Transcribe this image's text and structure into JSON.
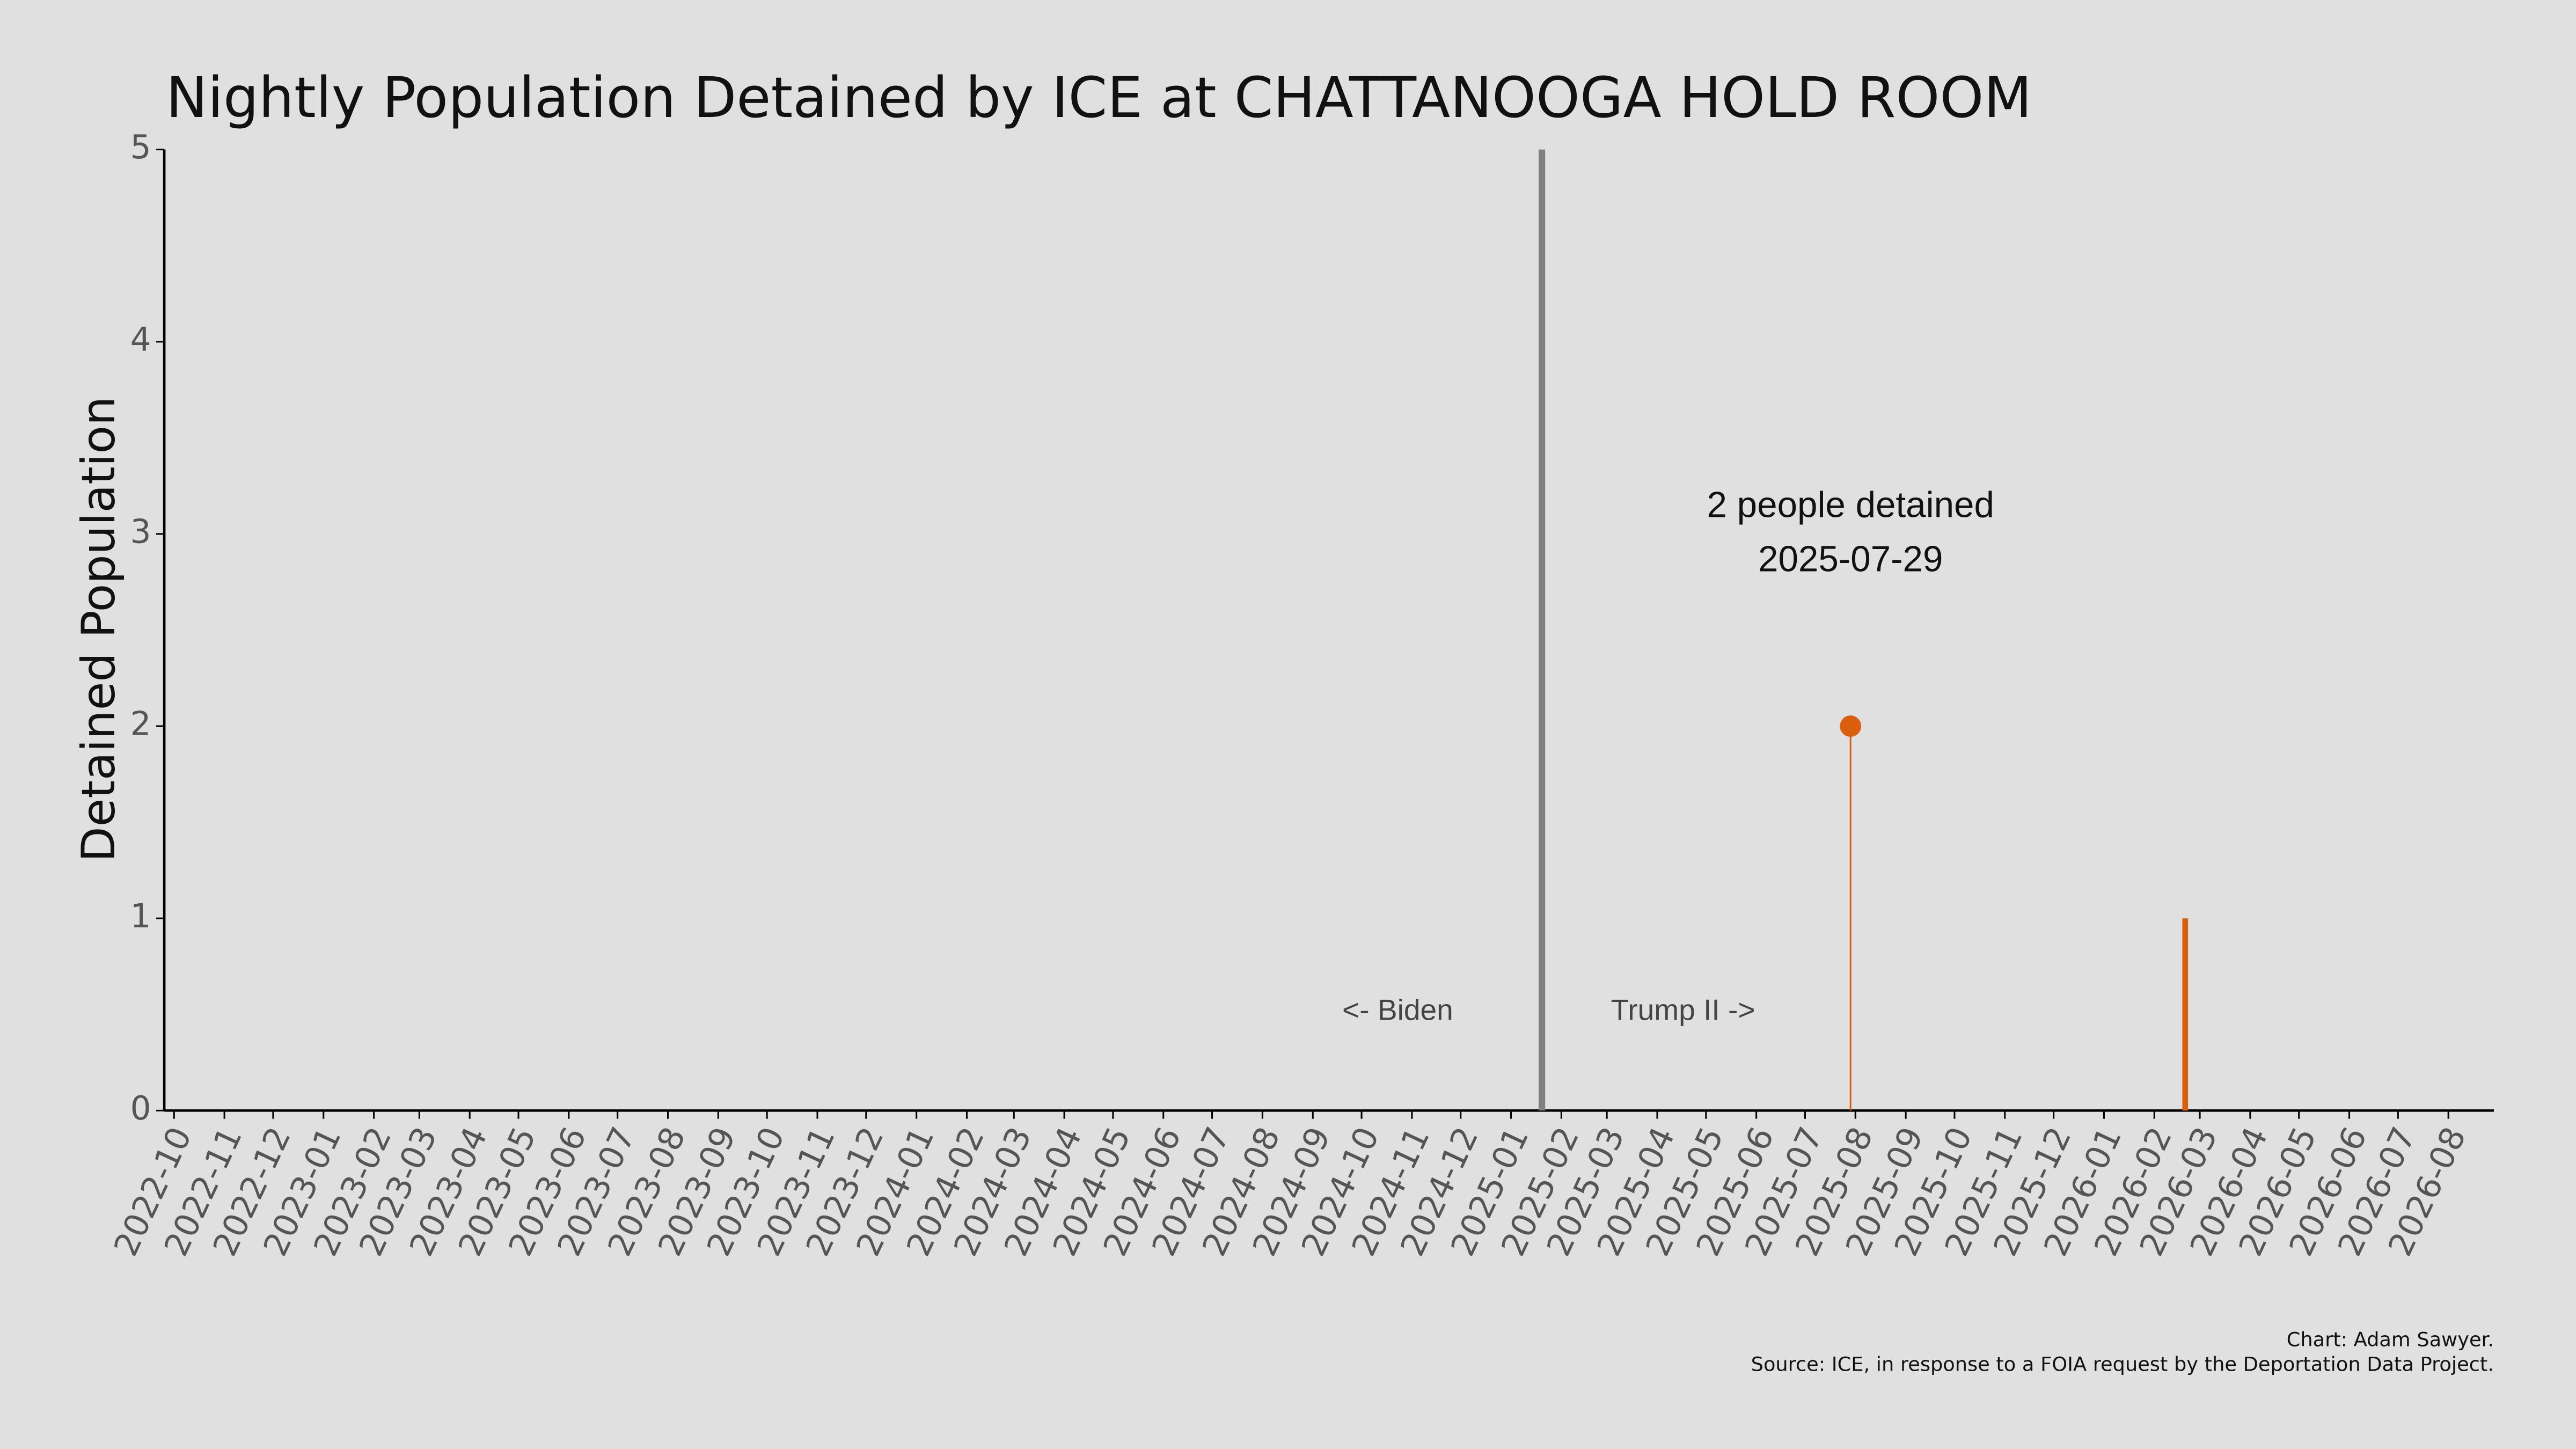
{
  "chart_data": {
    "type": "lollipop",
    "title": "Nightly Population Detained by ICE at CHATTANOOGA HOLD ROOM",
    "y_label": "Detained Population",
    "x": [
      "2025-07-29",
      "2026-02-20"
    ],
    "values": [
      2,
      1
    ],
    "color": "#d95f0e",
    "xlim": [
      "2022-09-25",
      "2026-08-29"
    ],
    "xticks": [
      {
        "value": "2022-10-01",
        "label": "2022-10"
      },
      {
        "value": "2022-11-01",
        "label": "2022-11"
      },
      {
        "value": "2022-12-01",
        "label": "2022-12"
      },
      {
        "value": "2023-01-01",
        "label": "2023-01"
      },
      {
        "value": "2023-02-01",
        "label": "2023-02"
      },
      {
        "value": "2023-03-01",
        "label": "2023-03"
      },
      {
        "value": "2023-04-01",
        "label": "2023-04"
      },
      {
        "value": "2023-05-01",
        "label": "2023-05"
      },
      {
        "value": "2023-06-01",
        "label": "2023-06"
      },
      {
        "value": "2023-07-01",
        "label": "2023-07"
      },
      {
        "value": "2023-08-01",
        "label": "2023-08"
      },
      {
        "value": "2023-09-01",
        "label": "2023-09"
      },
      {
        "value": "2023-10-01",
        "label": "2023-10"
      },
      {
        "value": "2023-11-01",
        "label": "2023-11"
      },
      {
        "value": "2023-12-01",
        "label": "2023-12"
      },
      {
        "value": "2024-01-01",
        "label": "2024-01"
      },
      {
        "value": "2024-02-01",
        "label": "2024-02"
      },
      {
        "value": "2024-03-01",
        "label": "2024-03"
      },
      {
        "value": "2024-04-01",
        "label": "2024-04"
      },
      {
        "value": "2024-05-01",
        "label": "2024-05"
      },
      {
        "value": "2024-06-01",
        "label": "2024-06"
      },
      {
        "value": "2024-07-01",
        "label": "2024-07"
      },
      {
        "value": "2024-08-01",
        "label": "2024-08"
      },
      {
        "value": "2024-09-01",
        "label": "2024-09"
      },
      {
        "value": "2024-10-01",
        "label": "2024-10"
      },
      {
        "value": "2024-11-01",
        "label": "2024-11"
      },
      {
        "value": "2024-12-01",
        "label": "2024-12"
      },
      {
        "value": "2025-01-01",
        "label": "2025-01"
      },
      {
        "value": "2025-02-01",
        "label": "2025-02"
      },
      {
        "value": "2025-03-01",
        "label": "2025-03"
      },
      {
        "value": "2025-04-01",
        "label": "2025-04"
      },
      {
        "value": "2025-05-01",
        "label": "2025-05"
      },
      {
        "value": "2025-06-01",
        "label": "2025-06"
      },
      {
        "value": "2025-07-01",
        "label": "2025-07"
      },
      {
        "value": "2025-08-01",
        "label": "2025-08"
      },
      {
        "value": "2025-09-01",
        "label": "2025-09"
      },
      {
        "value": "2025-10-01",
        "label": "2025-10"
      },
      {
        "value": "2025-11-01",
        "label": "2025-11"
      },
      {
        "value": "2025-12-01",
        "label": "2025-12"
      },
      {
        "value": "2026-01-01",
        "label": "2026-01"
      },
      {
        "value": "2026-02-01",
        "label": "2026-02"
      },
      {
        "value": "2026-03-01",
        "label": "2026-03"
      },
      {
        "value": "2026-04-01",
        "label": "2026-04"
      },
      {
        "value": "2026-05-01",
        "label": "2026-05"
      },
      {
        "value": "2026-06-01",
        "label": "2026-06"
      },
      {
        "value": "2026-07-01",
        "label": "2026-07"
      },
      {
        "value": "2026-08-01",
        "label": "2026-08"
      }
    ],
    "ylim": [
      0,
      5
    ],
    "yticks": [
      0,
      1,
      2,
      3,
      4,
      5
    ],
    "vline": {
      "x": "2025-01-20",
      "color": "#808080",
      "left_label": "<- Biden",
      "right_label": "Trump II ->"
    },
    "annotation": {
      "x": "2025-07-29",
      "lines": [
        "2 people detained",
        "2025-07-29"
      ]
    },
    "credits": [
      "Chart: Adam Sawyer.",
      "Source: ICE, in response to a FOIA request by the Deportation Data Project."
    ]
  }
}
